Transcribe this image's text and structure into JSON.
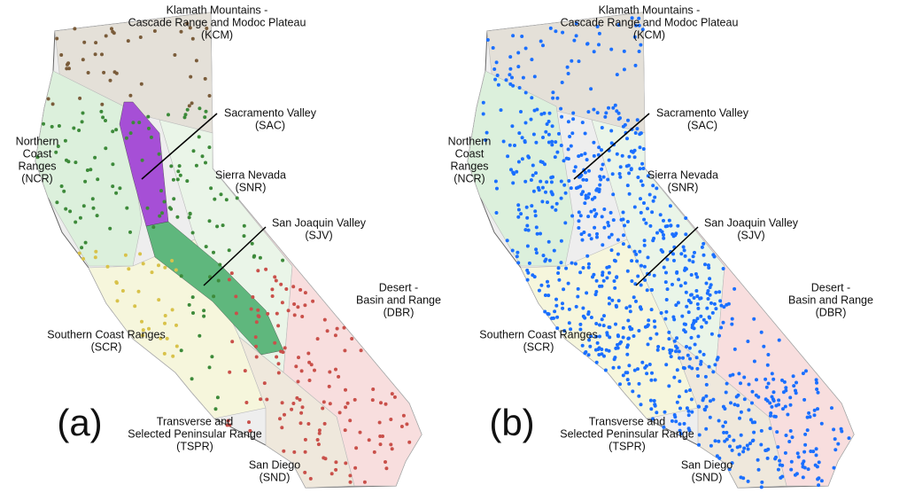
{
  "panels": [
    {
      "label": "(a)",
      "regions": [
        {
          "lines": [
            "Klamath Mountains -",
            "Cascade Range and Modoc Plateau",
            "(KCM)"
          ]
        },
        {
          "lines": [
            "Sacramento Valley",
            "(SAC)"
          ]
        },
        {
          "lines": [
            "Northern",
            "Coast",
            "Ranges",
            "(NCR)"
          ]
        },
        {
          "lines": [
            "Sierra Nevada",
            "(SNR)"
          ]
        },
        {
          "lines": [
            "San Joaquin Valley",
            "(SJV)"
          ]
        },
        {
          "lines": [
            "Desert -",
            "Basin and Range",
            "(DBR)"
          ]
        },
        {
          "lines": [
            "Southern Coast Ranges",
            "(SCR)"
          ]
        },
        {
          "lines": [
            "Transverse and",
            "Selected Peninsular Range",
            "(TSPR)"
          ]
        },
        {
          "lines": [
            "San Diego",
            "(SND)"
          ]
        }
      ]
    },
    {
      "label": "(b)",
      "regions": [
        {
          "lines": [
            "Klamath Mountains -",
            "Cascade Range and Modoc Plateau",
            "(KCM)"
          ]
        },
        {
          "lines": [
            "Sacramento Valley",
            "(SAC)"
          ]
        },
        {
          "lines": [
            "Northern",
            "Coast",
            "Ranges",
            "(NCR)"
          ]
        },
        {
          "lines": [
            "Sierra Nevada",
            "(SNR)"
          ]
        },
        {
          "lines": [
            "San Joaquin Valley",
            "(SJV)"
          ]
        },
        {
          "lines": [
            "Desert -",
            "Basin and Range",
            "(DBR)"
          ]
        },
        {
          "lines": [
            "Southern Coast Ranges",
            "(SCR)"
          ]
        },
        {
          "lines": [
            "Transverse and",
            "Selected Peninsular Range",
            "(TSPR)"
          ]
        },
        {
          "lines": [
            "San Diego",
            "(SND)"
          ]
        }
      ]
    }
  ]
}
